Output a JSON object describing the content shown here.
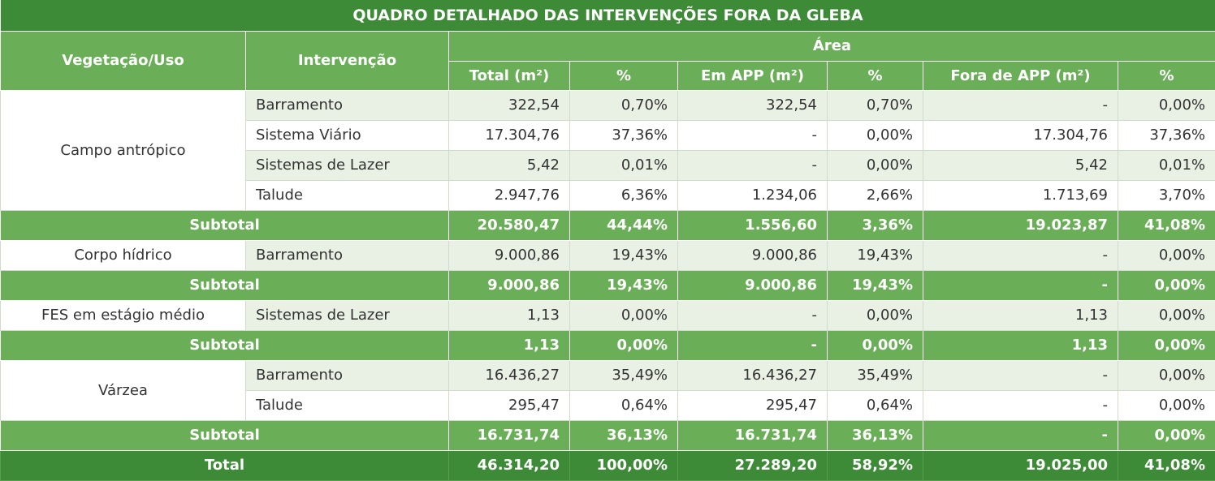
{
  "title": "QUADRO DETALHADO DAS INTERVENÇÕES FORA DA GLEBA",
  "headers": {
    "vegetacao": "Vegetação/Uso",
    "intervencao": "Intervenção",
    "area": "Área",
    "total_m2": "Total (m²)",
    "pct1": "%",
    "em_app": "Em APP (m²)",
    "pct2": "%",
    "fora_app": "Fora de APP (m²)",
    "pct3": "%"
  },
  "groups": [
    {
      "vegetacao": "Campo antrópico",
      "rows": [
        [
          "Barramento",
          "322,54",
          "0,70%",
          "322,54",
          "0,70%",
          "-",
          "0,00%"
        ],
        [
          "Sistema Viário",
          "17.304,76",
          "37,36%",
          "-",
          "0,00%",
          "17.304,76",
          "37,36%"
        ],
        [
          "Sistemas de Lazer",
          "5,42",
          "0,01%",
          "-",
          "0,00%",
          "5,42",
          "0,01%"
        ],
        [
          "Talude",
          "2.947,76",
          "6,36%",
          "1.234,06",
          "2,66%",
          "1.713,69",
          "3,70%"
        ]
      ],
      "subtotal": [
        "Subtotal",
        "20.580,47",
        "44,44%",
        "1.556,60",
        "3,36%",
        "19.023,87",
        "41,08%"
      ]
    },
    {
      "vegetacao": "Corpo hídrico",
      "rows": [
        [
          "Barramento",
          "9.000,86",
          "19,43%",
          "9.000,86",
          "19,43%",
          "-",
          "0,00%"
        ]
      ],
      "subtotal": [
        "Subtotal",
        "9.000,86",
        "19,43%",
        "9.000,86",
        "19,43%",
        "-",
        "0,00%"
      ]
    },
    {
      "vegetacao": "FES em estágio médio",
      "rows": [
        [
          "Sistemas de Lazer",
          "1,13",
          "0,00%",
          "-",
          "0,00%",
          "1,13",
          "0,00%"
        ]
      ],
      "subtotal": [
        "Subtotal",
        "1,13",
        "0,00%",
        "-",
        "0,00%",
        "1,13",
        "0,00%"
      ]
    },
    {
      "vegetacao": "Várzea",
      "rows": [
        [
          "Barramento",
          "16.436,27",
          "35,49%",
          "16.436,27",
          "35,49%",
          "-",
          "0,00%"
        ],
        [
          "Talude",
          "295,47",
          "0,64%",
          "295,47",
          "0,64%",
          "-",
          "0,00%"
        ]
      ],
      "subtotal": [
        "Subtotal",
        "16.731,74",
        "36,13%",
        "16.731,74",
        "36,13%",
        "-",
        "0,00%"
      ]
    }
  ],
  "total": [
    "Total",
    "46.314,20",
    "100,00%",
    "27.289,20",
    "58,92%",
    "19.025,00",
    "41,08%"
  ]
}
